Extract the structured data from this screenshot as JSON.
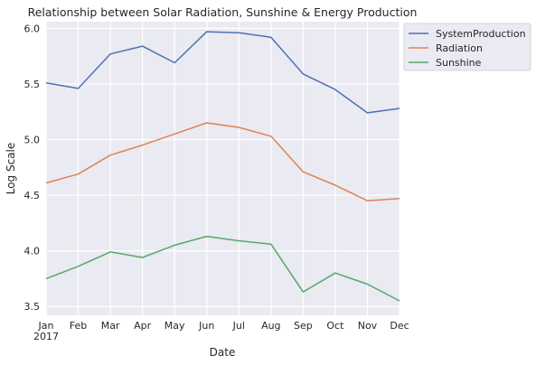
{
  "chart_data": {
    "type": "line",
    "title": "Relationship between Solar Radiation, Sunshine & Energy Production",
    "xlabel": "Date",
    "ylabel": "Log Scale",
    "x_ticks": [
      "Jan",
      "Feb",
      "Mar",
      "Apr",
      "May",
      "Jun",
      "Jul",
      "Aug",
      "Sep",
      "Oct",
      "Nov",
      "Dec"
    ],
    "x_year_label": "2017",
    "categories": [
      "2017-01",
      "2017-02",
      "2017-03",
      "2017-04",
      "2017-05",
      "2017-06",
      "2017-07",
      "2017-08",
      "2017-09",
      "2017-10",
      "2017-11",
      "2017-12"
    ],
    "ylim": [
      3.42,
      6.06
    ],
    "y_ticks": [
      3.5,
      4.0,
      4.5,
      5.0,
      5.5,
      6.0
    ],
    "y_tick_labels": [
      "3.5",
      "4.0",
      "4.5",
      "5.0",
      "5.5",
      "6.0"
    ],
    "grid": true,
    "legend_position": "outside-top-right",
    "series": [
      {
        "name": "SystemProduction",
        "color": "#4c72b0",
        "values": [
          5.51,
          5.46,
          5.77,
          5.84,
          5.69,
          5.97,
          5.96,
          5.92,
          5.59,
          5.45,
          5.24,
          5.28
        ]
      },
      {
        "name": "Radiation",
        "color": "#dd8452",
        "values": [
          4.61,
          4.69,
          4.86,
          4.95,
          5.05,
          5.15,
          5.11,
          5.03,
          4.71,
          4.59,
          4.45,
          4.47
        ]
      },
      {
        "name": "Sunshine",
        "color": "#55a868",
        "values": [
          3.75,
          3.86,
          3.99,
          3.94,
          4.05,
          4.13,
          4.09,
          4.06,
          3.63,
          3.8,
          3.7,
          3.55
        ]
      }
    ]
  }
}
